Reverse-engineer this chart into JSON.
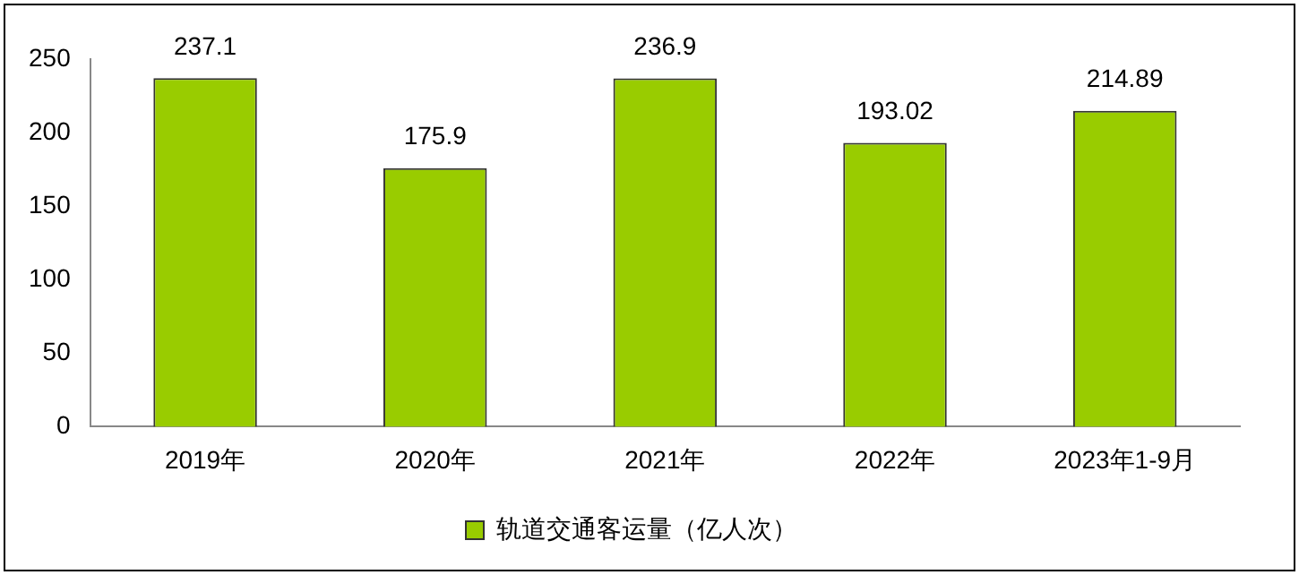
{
  "chart_data": {
    "type": "bar",
    "categories": [
      "2019年",
      "2020年",
      "2021年",
      "2022年",
      "2023年1-9月"
    ],
    "series": [
      {
        "name": "轨道交通客运量（亿人次）",
        "color": "#99cc00",
        "values": [
          237.1,
          175.9,
          236.9,
          193.02,
          214.89
        ]
      }
    ],
    "ylim": [
      0,
      250
    ],
    "yticks": [
      0,
      50,
      100,
      150,
      200,
      250
    ],
    "grid": false,
    "legend": "bottom",
    "data_labels": true
  }
}
